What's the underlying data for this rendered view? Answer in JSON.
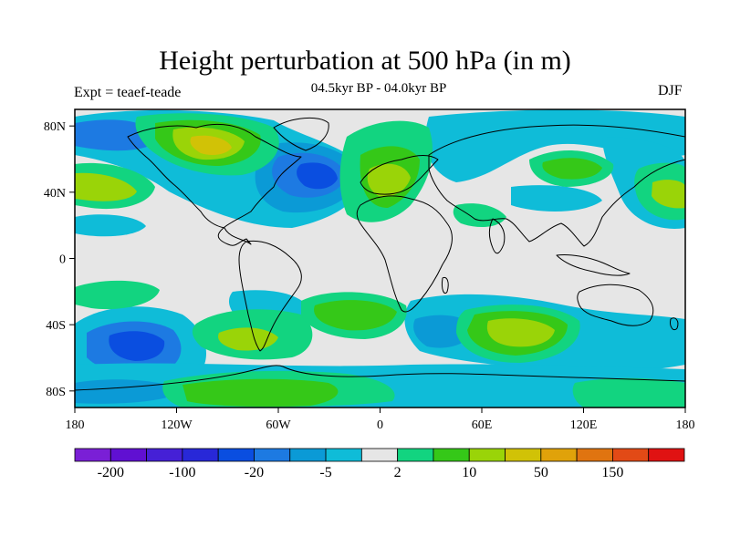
{
  "title": "Height perturbation at 500 hPa (in m)",
  "subtitle": "04.5kyr BP - 04.0kyr BP",
  "left_label": "Expt = teaef-teade",
  "right_label": "DJF",
  "map": {
    "lat_ticks": [
      "80N",
      "40N",
      "0",
      "40S",
      "80S"
    ],
    "lon_ticks": [
      "180",
      "120W",
      "60W",
      "0",
      "60E",
      "120E",
      "180"
    ],
    "background_color": "#e6e6e6",
    "frame_color": "#000000"
  },
  "colorbar": {
    "colors": [
      "#7a1fd6",
      "#6010d2",
      "#4520d6",
      "#2828d8",
      "#0a4ee0",
      "#1d7ae2",
      "#0b9ad6",
      "#0fbcd8",
      "#e6e6e6",
      "#12d480",
      "#35c818",
      "#9ad408",
      "#d1c206",
      "#e0a20a",
      "#e07410",
      "#e24a16",
      "#e01212"
    ],
    "labels": [
      {
        "text": "-200",
        "index": 1
      },
      {
        "text": "-100",
        "index": 3
      },
      {
        "text": "-20",
        "index": 5
      },
      {
        "text": "-5",
        "index": 7
      },
      {
        "text": "2",
        "index": 9
      },
      {
        "text": "10",
        "index": 11
      },
      {
        "text": "50",
        "index": 13
      },
      {
        "text": "150",
        "index": 15
      }
    ]
  }
}
